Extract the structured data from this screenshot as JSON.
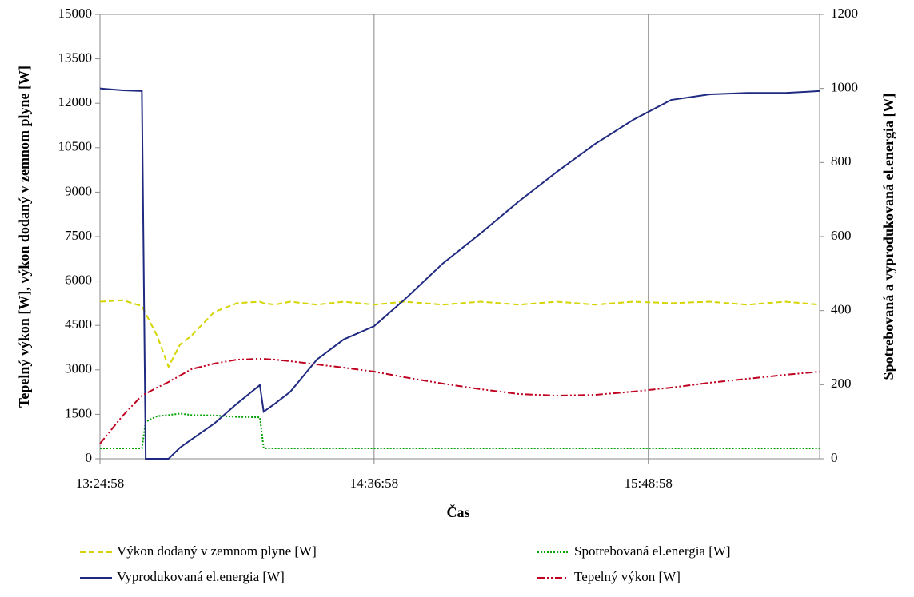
{
  "chart_data": {
    "type": "line",
    "xlabel": "Čas",
    "ylabel": "Tepelný výkon [W], výkon dodaný v zemnom plyne [W]",
    "y2label": "Spotrebovaná a vyprodukovaná el.energia [W]",
    "x": [
      "13:24:58",
      "13:30:58",
      "13:35:58",
      "13:36:58",
      "13:39:58",
      "13:42:58",
      "13:45:58",
      "13:48:58",
      "13:54:58",
      "14:00:58",
      "14:06:58",
      "14:07:58",
      "14:10:58",
      "14:14:58",
      "14:21:58",
      "14:28:58",
      "14:36:58",
      "14:44:58",
      "14:54:58",
      "15:04:58",
      "15:14:58",
      "15:24:58",
      "15:34:58",
      "15:44:58",
      "15:54:58",
      "16:04:58",
      "16:14:58",
      "16:24:58",
      "16:33:58"
    ],
    "xlim": [
      "13:24:58",
      "16:33:58"
    ],
    "xticks": [
      "13:24:58",
      "14:36:58",
      "15:48:58"
    ],
    "ylim": [
      0,
      15000
    ],
    "yticks": [
      0,
      1500,
      3000,
      4500,
      6000,
      7500,
      9000,
      10500,
      12000,
      13500,
      15000
    ],
    "y2lim": [
      0,
      1200
    ],
    "y2ticks": [
      0,
      200,
      400,
      600,
      800,
      1000,
      1200
    ],
    "grid": "x",
    "series": [
      {
        "name": "Výkon dodaný v zemnom plyne [W]",
        "color": "#d4d400",
        "style": "dashed",
        "values": [
          5300,
          5350,
          5150,
          4900,
          4150,
          3100,
          3850,
          4150,
          4950,
          5250,
          5300,
          5250,
          5200,
          5300,
          5200,
          5300,
          5200,
          5300,
          5200,
          5300,
          5200,
          5300,
          5200,
          5300,
          5250,
          5300,
          5200,
          5300,
          5200
        ]
      },
      {
        "name": "Spotrebovaná el.energia [W]",
        "color": "#00a000",
        "style": "dotted",
        "axis": "y2",
        "values": [
          28,
          28,
          28,
          100,
          115,
          118,
          122,
          118,
          117,
          113,
          112,
          28,
          28,
          28,
          28,
          28,
          28,
          28,
          28,
          28,
          28,
          28,
          28,
          28,
          28,
          28,
          28,
          28,
          28
        ]
      },
      {
        "name": "Vyprodukovaná el.energia [W]",
        "color": "#1f2a80",
        "style": "solid",
        "axis": "y2",
        "values": [
          1000,
          995,
          993,
          0,
          0,
          0,
          30,
          52,
          95,
          149,
          199,
          127,
          149,
          181,
          268,
          322,
          358,
          430,
          527,
          609,
          695,
          775,
          850,
          915,
          969,
          984,
          988,
          988,
          993
        ]
      },
      {
        "name": "Tepelný výkon [W]",
        "color": "#c00020",
        "style": "dashdotdot",
        "values": [
          510,
          1457,
          2131,
          2200,
          2400,
          2590,
          2806,
          3022,
          3210,
          3345,
          3372,
          3370,
          3345,
          3291,
          3183,
          3075,
          2940,
          2752,
          2536,
          2347,
          2185,
          2131,
          2158,
          2266,
          2401,
          2563,
          2698,
          2833,
          2940
        ]
      }
    ]
  }
}
